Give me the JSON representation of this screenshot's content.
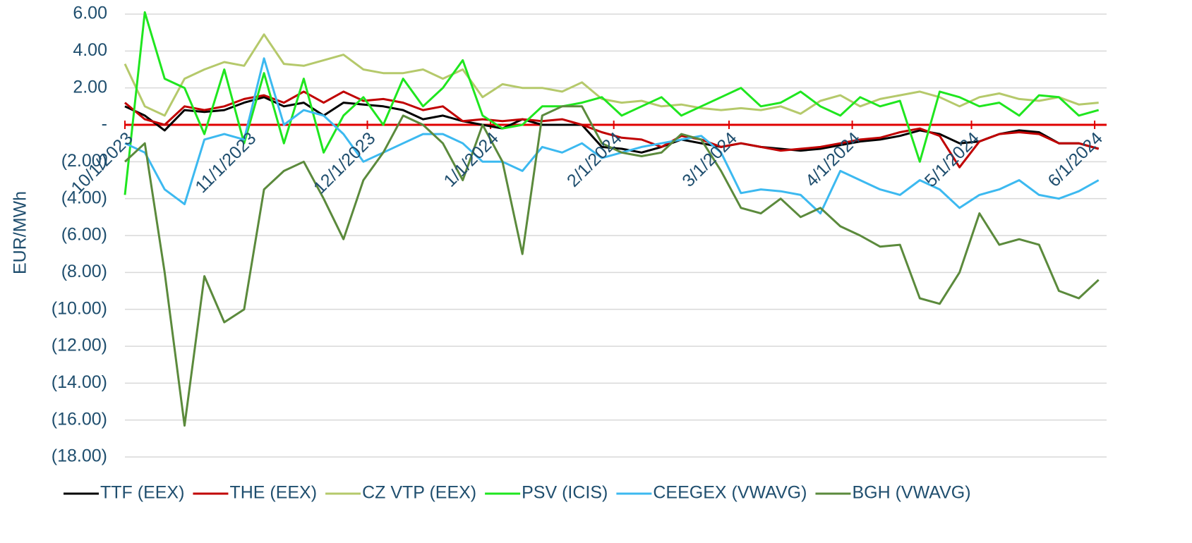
{
  "chart_data": {
    "type": "line",
    "y_label": "EUR/MWh",
    "x": [
      "2023-10-01",
      "2023-10-06",
      "2023-10-11",
      "2023-10-16",
      "2023-10-21",
      "2023-10-26",
      "2023-10-31",
      "2023-11-05",
      "2023-11-10",
      "2023-11-15",
      "2023-11-20",
      "2023-11-25",
      "2023-11-30",
      "2023-12-05",
      "2023-12-10",
      "2023-12-15",
      "2023-12-20",
      "2023-12-25",
      "2023-12-30",
      "2024-01-04",
      "2024-01-09",
      "2024-01-14",
      "2024-01-19",
      "2024-01-24",
      "2024-01-29",
      "2024-02-03",
      "2024-02-08",
      "2024-02-13",
      "2024-02-18",
      "2024-02-23",
      "2024-02-28",
      "2024-03-04",
      "2024-03-09",
      "2024-03-14",
      "2024-03-19",
      "2024-03-24",
      "2024-03-29",
      "2024-04-03",
      "2024-04-08",
      "2024-04-13",
      "2024-04-18",
      "2024-04-23",
      "2024-04-28",
      "2024-05-03",
      "2024-05-08",
      "2024-05-13",
      "2024-05-18",
      "2024-05-23",
      "2024-05-28",
      "2024-06-02"
    ],
    "xlim": [
      "2023-10-01",
      "2024-06-04"
    ],
    "xticks": [
      {
        "value": "2023-10-01",
        "label": "10/1/2023"
      },
      {
        "value": "2023-11-01",
        "label": "11/1/2023"
      },
      {
        "value": "2023-12-01",
        "label": "12/1/2023"
      },
      {
        "value": "2024-01-01",
        "label": "1/1/2024"
      },
      {
        "value": "2024-02-01",
        "label": "2/1/2024"
      },
      {
        "value": "2024-03-01",
        "label": "3/1/2024"
      },
      {
        "value": "2024-04-01",
        "label": "4/1/2024"
      },
      {
        "value": "2024-05-01",
        "label": "5/1/2024"
      },
      {
        "value": "2024-06-01",
        "label": "6/1/2024"
      }
    ],
    "ylim": [
      -18,
      6
    ],
    "yticks": [
      {
        "value": 6,
        "label": "6.00"
      },
      {
        "value": 4,
        "label": "4.00"
      },
      {
        "value": 2,
        "label": "2.00"
      },
      {
        "value": 0,
        "label": "-"
      },
      {
        "value": -2,
        "label": "(2.00)"
      },
      {
        "value": -4,
        "label": "(4.00)"
      },
      {
        "value": -6,
        "label": "(6.00)"
      },
      {
        "value": -8,
        "label": "(8.00)"
      },
      {
        "value": -10,
        "label": "(10.00)"
      },
      {
        "value": -12,
        "label": "(12.00)"
      },
      {
        "value": -14,
        "label": "(14.00)"
      },
      {
        "value": -16,
        "label": "(16.00)"
      },
      {
        "value": -18,
        "label": "(18.00)"
      }
    ],
    "grid": true,
    "zero_line_color": "#e00000",
    "legend": "bottom",
    "series": [
      {
        "name": "TTF (EEX)",
        "color": "#000000",
        "values": [
          1.0,
          0.5,
          -0.3,
          0.8,
          0.7,
          0.8,
          1.2,
          1.5,
          1.0,
          1.2,
          0.5,
          1.2,
          1.1,
          1.0,
          0.8,
          0.3,
          0.5,
          0.2,
          0.0,
          -0.2,
          0.3,
          0.0,
          0.0,
          0.0,
          -1.2,
          -1.3,
          -1.5,
          -1.2,
          -0.8,
          -1.0,
          -1.2,
          -1.0,
          -1.2,
          -1.3,
          -1.4,
          -1.3,
          -1.1,
          -0.9,
          -0.8,
          -0.6,
          -0.3,
          -0.5,
          -1.0,
          -0.9,
          -0.5,
          -0.3,
          -0.4,
          -1.0,
          -1.0,
          -1.3
        ]
      },
      {
        "name": "THE (EEX)",
        "color": "#c00000",
        "values": [
          1.2,
          0.3,
          0.0,
          1.0,
          0.8,
          1.0,
          1.4,
          1.6,
          1.2,
          1.8,
          1.2,
          1.8,
          1.3,
          1.4,
          1.2,
          0.8,
          1.0,
          0.2,
          0.3,
          0.2,
          0.3,
          0.2,
          0.3,
          0.0,
          -0.4,
          -0.7,
          -0.8,
          -1.2,
          -0.6,
          -0.8,
          -1.2,
          -1.0,
          -1.2,
          -1.4,
          -1.3,
          -1.2,
          -1.0,
          -0.8,
          -0.7,
          -0.4,
          -0.2,
          -0.6,
          -2.3,
          -0.9,
          -0.5,
          -0.4,
          -0.5,
          -1.0,
          -1.0,
          -1.3
        ]
      },
      {
        "name": "CZ VTP (EEX)",
        "color": "#b5c96b",
        "values": [
          3.3,
          1.0,
          0.5,
          2.5,
          3.0,
          3.4,
          3.2,
          4.9,
          3.3,
          3.2,
          3.5,
          3.8,
          3.0,
          2.8,
          2.8,
          3.0,
          2.5,
          3.0,
          1.5,
          2.2,
          2.0,
          2.0,
          1.8,
          2.3,
          1.4,
          1.2,
          1.3,
          1.0,
          1.1,
          0.9,
          0.8,
          0.9,
          0.8,
          1.0,
          0.6,
          1.3,
          1.6,
          1.0,
          1.4,
          1.6,
          1.8,
          1.5,
          1.0,
          1.5,
          1.7,
          1.4,
          1.3,
          1.5,
          1.1,
          1.2
        ]
      },
      {
        "name": "PSV (ICIS)",
        "color": "#1fe61f",
        "values": [
          -3.8,
          6.1,
          2.5,
          2.0,
          -0.5,
          3.0,
          -1.0,
          2.8,
          -1.0,
          2.5,
          -1.5,
          0.5,
          1.5,
          0.0,
          2.5,
          1.0,
          2.0,
          3.5,
          0.5,
          -0.2,
          0.0,
          1.0,
          1.0,
          1.2,
          1.5,
          0.5,
          1.0,
          1.5,
          0.5,
          1.0,
          1.5,
          2.0,
          1.0,
          1.2,
          1.8,
          1.0,
          0.5,
          1.5,
          1.0,
          1.3,
          -2.0,
          1.8,
          1.5,
          1.0,
          1.2,
          0.5,
          1.6,
          1.5,
          0.5,
          0.8
        ]
      },
      {
        "name": "CEEGEX (VWAVG)",
        "color": "#3cb9f0",
        "values": [
          -1.0,
          -1.5,
          -3.5,
          -4.3,
          -0.8,
          -0.5,
          -0.8,
          3.6,
          0.0,
          0.8,
          0.5,
          -0.5,
          -2.0,
          -1.5,
          -1.0,
          -0.5,
          -0.5,
          -1.0,
          -2.0,
          -2.0,
          -2.5,
          -1.2,
          -1.5,
          -1.0,
          -1.8,
          -1.5,
          -1.2,
          -1.0,
          -0.8,
          -0.6,
          -1.5,
          -3.7,
          -3.5,
          -3.6,
          -3.8,
          -4.8,
          -2.5,
          -3.0,
          -3.5,
          -3.8,
          -3.0,
          -3.5,
          -4.5,
          -3.8,
          -3.5,
          -3.0,
          -3.8,
          -4.0,
          -3.6,
          -3.0
        ]
      },
      {
        "name": "BGH (VWAVG)",
        "color": "#5b8a3c",
        "values": [
          -2.0,
          -1.0,
          -8.0,
          -16.3,
          -8.2,
          -10.7,
          -10.0,
          -3.5,
          -2.5,
          -2.0,
          -4.0,
          -6.2,
          -3.0,
          -1.5,
          0.5,
          0.0,
          -1.0,
          -3.0,
          0.0,
          -2.0,
          -7.0,
          0.5,
          1.0,
          1.0,
          -1.0,
          -1.5,
          -1.7,
          -1.5,
          -0.5,
          -0.8,
          -2.5,
          -4.5,
          -4.8,
          -4.0,
          -5.0,
          -4.5,
          -5.5,
          -6.0,
          -6.6,
          -6.5,
          -9.4,
          -9.7,
          -8.0,
          -4.8,
          -6.5,
          -6.2,
          -6.5,
          -9.0,
          -9.4,
          -8.4
        ]
      }
    ]
  }
}
